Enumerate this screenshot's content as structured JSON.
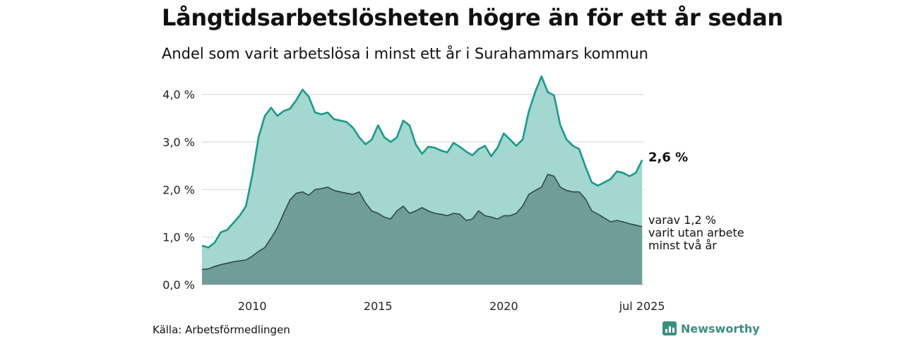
{
  "title": "Långtidsarbetslösheten högre än för ett år sedan",
  "subtitle": "Andel som varit arbetslösa i minst ett år i Surahammars kommun",
  "source": "Källa: Arbetsförmedlingen",
  "brand": "Newsworthy",
  "colors": {
    "series_1yr_line": "#1b9a8a",
    "series_1yr_fill": "#a3d7d0",
    "series_2yr_line": "#2f4a44",
    "series_2yr_fill": "#6f9e98",
    "grid": "#d9d9d9"
  },
  "chart_data": {
    "type": "area",
    "ylim": [
      0,
      4.5
    ],
    "yticks": [
      0,
      1,
      2,
      3,
      4
    ],
    "ytick_labels": [
      "0,0 %",
      "1,0 %",
      "2,0 %",
      "3,0 %",
      "4,0 %"
    ],
    "xlim": [
      2008.0,
      2025.58
    ],
    "xticks": [
      2010,
      2015,
      2020,
      2025.5
    ],
    "xtick_labels": [
      "2010",
      "2015",
      "2020",
      "jul 2025"
    ],
    "end_label_1": "2,6 %",
    "end_label_2": [
      "varav 1,2 %",
      "varit utan arbete",
      "minst två år"
    ],
    "series": [
      {
        "key": "1yr",
        "x": [
          2008.0,
          2008.25,
          2008.5,
          2008.75,
          2009.0,
          2009.25,
          2009.5,
          2009.75,
          2010.0,
          2010.25,
          2010.5,
          2010.75,
          2011.0,
          2011.25,
          2011.5,
          2011.75,
          2012.0,
          2012.25,
          2012.5,
          2012.75,
          2013.0,
          2013.25,
          2013.5,
          2013.75,
          2014.0,
          2014.25,
          2014.5,
          2014.75,
          2015.0,
          2015.25,
          2015.5,
          2015.75,
          2016.0,
          2016.25,
          2016.5,
          2016.75,
          2017.0,
          2017.25,
          2017.5,
          2017.75,
          2018.0,
          2018.25,
          2018.5,
          2018.75,
          2019.0,
          2019.25,
          2019.5,
          2019.75,
          2020.0,
          2020.25,
          2020.5,
          2020.75,
          2021.0,
          2021.25,
          2021.5,
          2021.75,
          2022.0,
          2022.25,
          2022.5,
          2022.75,
          2023.0,
          2023.25,
          2023.5,
          2023.75,
          2024.0,
          2024.25,
          2024.5,
          2024.75,
          2025.0,
          2025.25,
          2025.5
        ],
        "values": [
          0.82,
          0.78,
          0.88,
          1.1,
          1.15,
          1.3,
          1.45,
          1.65,
          2.3,
          3.1,
          3.55,
          3.72,
          3.55,
          3.65,
          3.7,
          3.88,
          4.1,
          3.95,
          3.62,
          3.58,
          3.62,
          3.48,
          3.45,
          3.42,
          3.3,
          3.1,
          2.95,
          3.05,
          3.35,
          3.1,
          3.0,
          3.1,
          3.45,
          3.35,
          2.95,
          2.75,
          2.9,
          2.88,
          2.82,
          2.78,
          2.98,
          2.9,
          2.8,
          2.72,
          2.85,
          2.92,
          2.7,
          2.88,
          3.18,
          3.05,
          2.92,
          3.05,
          3.65,
          4.05,
          4.38,
          4.05,
          3.98,
          3.35,
          3.05,
          2.92,
          2.85,
          2.48,
          2.15,
          2.08,
          2.15,
          2.22,
          2.38,
          2.35,
          2.28,
          2.35,
          2.62
        ]
      },
      {
        "key": "2yr",
        "x": [
          2008.0,
          2008.25,
          2008.5,
          2008.75,
          2009.0,
          2009.25,
          2009.5,
          2009.75,
          2010.0,
          2010.25,
          2010.5,
          2010.75,
          2011.0,
          2011.25,
          2011.5,
          2011.75,
          2012.0,
          2012.25,
          2012.5,
          2012.75,
          2013.0,
          2013.25,
          2013.5,
          2013.75,
          2014.0,
          2014.25,
          2014.5,
          2014.75,
          2015.0,
          2015.25,
          2015.5,
          2015.75,
          2016.0,
          2016.25,
          2016.5,
          2016.75,
          2017.0,
          2017.25,
          2017.5,
          2017.75,
          2018.0,
          2018.25,
          2018.5,
          2018.75,
          2019.0,
          2019.25,
          2019.5,
          2019.75,
          2020.0,
          2020.25,
          2020.5,
          2020.75,
          2021.0,
          2021.25,
          2021.5,
          2021.75,
          2022.0,
          2022.25,
          2022.5,
          2022.75,
          2023.0,
          2023.25,
          2023.5,
          2023.75,
          2024.0,
          2024.25,
          2024.5,
          2024.75,
          2025.0,
          2025.25,
          2025.5
        ],
        "values": [
          0.32,
          0.33,
          0.38,
          0.42,
          0.45,
          0.48,
          0.5,
          0.52,
          0.6,
          0.7,
          0.78,
          0.98,
          1.2,
          1.5,
          1.78,
          1.92,
          1.95,
          1.88,
          2.0,
          2.02,
          2.05,
          1.98,
          1.95,
          1.92,
          1.9,
          1.95,
          1.72,
          1.55,
          1.5,
          1.42,
          1.38,
          1.55,
          1.65,
          1.5,
          1.55,
          1.62,
          1.55,
          1.5,
          1.48,
          1.45,
          1.5,
          1.48,
          1.35,
          1.38,
          1.55,
          1.45,
          1.42,
          1.38,
          1.45,
          1.45,
          1.5,
          1.65,
          1.9,
          1.98,
          2.05,
          2.32,
          2.28,
          2.05,
          1.98,
          1.95,
          1.95,
          1.8,
          1.55,
          1.48,
          1.4,
          1.32,
          1.35,
          1.32,
          1.28,
          1.25,
          1.22
        ]
      }
    ]
  }
}
